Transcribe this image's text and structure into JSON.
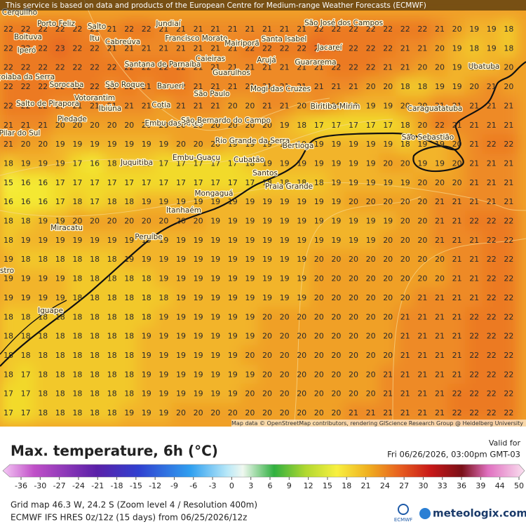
{
  "header": {
    "notice": "This service is based on data and products of the European Centre for Medium-range Weather Forecasts (ECMWF)"
  },
  "map": {
    "attribution": "Map data © OpenStreetMap contributors, rendering GIScience Research Group @ Heidelberg University",
    "cities": [
      "Cerquilho",
      "Porto Feliz",
      "Salto",
      "Jundiaí",
      "Boituva",
      "Itu",
      "Cabreúva",
      "Francisco Morato",
      "Mairiporã",
      "Santa Isabel",
      "São José dos Campos",
      "Jacareí",
      "Iperó",
      "Caieiras",
      "Santana de Parnaíba",
      "Arujá",
      "Guararema",
      "Guarulhos",
      "Araçoiaba da Serra",
      "Sorocaba",
      "São Roque",
      "Barueri",
      "São Paulo",
      "Mogi das Cruzes",
      "Ubatuba",
      "Salto de Pirapora",
      "Votorantim",
      "Ibiúna",
      "Cotia",
      "Embu das Artes",
      "São Bernardo do Campo",
      "Biritiba-Mirim",
      "Caraguatatuba",
      "Piedade",
      "Pilar do Sul",
      "Rio Grande da Serra",
      "Bertioga",
      "São Sebastião",
      "Embu-Guaçu",
      "Juquitiba",
      "Cubatão",
      "Santos",
      "Praia Grande",
      "Mongaguá",
      "Itanhaém",
      "Miracatu",
      "Peruíbe",
      "Iguape",
      "stro"
    ],
    "grid": [
      [
        22,
        22,
        22,
        22,
        22,
        21,
        21,
        22,
        22,
        21,
        21,
        21,
        21,
        21,
        21,
        21,
        21,
        21,
        22,
        22,
        22,
        22,
        22,
        22,
        22,
        21,
        20,
        19,
        19,
        18
      ],
      [
        22,
        22,
        22,
        23,
        22,
        22,
        21,
        21,
        21,
        21,
        21,
        21,
        21,
        21,
        22,
        22,
        22,
        22,
        23,
        22,
        22,
        22,
        22,
        21,
        21,
        20,
        19,
        18,
        19,
        18
      ],
      [
        22,
        22,
        22,
        22,
        22,
        22,
        22,
        22,
        22,
        22,
        22,
        21,
        21,
        21,
        21,
        21,
        21,
        21,
        21,
        22,
        22,
        22,
        21,
        21,
        20,
        20,
        19,
        19,
        19,
        20
      ],
      [
        22,
        22,
        22,
        22,
        22,
        22,
        21,
        22,
        21,
        22,
        22,
        21,
        21,
        21,
        21,
        21,
        21,
        21,
        21,
        21,
        21,
        20,
        20,
        18,
        18,
        19,
        19,
        20,
        21,
        20
      ],
      [
        22,
        22,
        22,
        21,
        21,
        21,
        21,
        21,
        21,
        20,
        21,
        21,
        21,
        20,
        20,
        21,
        21,
        20,
        21,
        20,
        19,
        19,
        19,
        20,
        20,
        21,
        21,
        21,
        21,
        21
      ],
      [
        21,
        21,
        21,
        20,
        20,
        20,
        20,
        20,
        20,
        20,
        20,
        20,
        20,
        20,
        20,
        20,
        19,
        18,
        17,
        17,
        17,
        17,
        17,
        18,
        20,
        22,
        21,
        21,
        21,
        21
      ],
      [
        21,
        20,
        20,
        19,
        19,
        19,
        19,
        19,
        19,
        19,
        20,
        20,
        20,
        19,
        19,
        19,
        19,
        19,
        19,
        19,
        19,
        19,
        19,
        18,
        19,
        19,
        20,
        21,
        22,
        22
      ],
      [
        18,
        19,
        19,
        19,
        17,
        16,
        18,
        18,
        18,
        17,
        17,
        17,
        17,
        17,
        18,
        19,
        19,
        19,
        19,
        19,
        19,
        19,
        20,
        20,
        19,
        19,
        20,
        21,
        21,
        21
      ],
      [
        15,
        16,
        16,
        17,
        17,
        17,
        17,
        17,
        17,
        17,
        17,
        17,
        17,
        17,
        17,
        18,
        18,
        18,
        18,
        19,
        19,
        19,
        19,
        19,
        20,
        20,
        20,
        21,
        21,
        21
      ],
      [
        16,
        16,
        16,
        17,
        18,
        17,
        18,
        18,
        19,
        19,
        19,
        19,
        19,
        19,
        19,
        19,
        19,
        19,
        19,
        19,
        20,
        20,
        20,
        20,
        20,
        21,
        21,
        21,
        21,
        21
      ],
      [
        18,
        18,
        19,
        19,
        20,
        20,
        20,
        20,
        20,
        20,
        20,
        20,
        19,
        19,
        19,
        19,
        19,
        19,
        19,
        19,
        19,
        19,
        19,
        20,
        20,
        21,
        21,
        22,
        22,
        22
      ],
      [
        18,
        19,
        19,
        19,
        19,
        19,
        19,
        19,
        19,
        19,
        19,
        19,
        19,
        19,
        19,
        19,
        19,
        19,
        19,
        19,
        19,
        19,
        20,
        20,
        20,
        21,
        21,
        21,
        22,
        22
      ],
      [
        19,
        18,
        18,
        18,
        18,
        18,
        18,
        19,
        19,
        19,
        19,
        19,
        19,
        19,
        19,
        19,
        19,
        19,
        20,
        20,
        20,
        20,
        20,
        20,
        20,
        20,
        21,
        21,
        22,
        22
      ],
      [
        19,
        19,
        19,
        19,
        18,
        18,
        18,
        18,
        18,
        19,
        19,
        19,
        19,
        19,
        19,
        19,
        19,
        19,
        20,
        20,
        20,
        20,
        20,
        20,
        20,
        20,
        21,
        21,
        22,
        22
      ],
      [
        19,
        19,
        19,
        19,
        18,
        18,
        18,
        18,
        18,
        18,
        19,
        19,
        19,
        19,
        19,
        19,
        19,
        19,
        20,
        20,
        20,
        20,
        20,
        20,
        21,
        21,
        21,
        21,
        22,
        22
      ],
      [
        18,
        18,
        18,
        18,
        18,
        18,
        18,
        18,
        18,
        19,
        19,
        19,
        19,
        19,
        19,
        20,
        20,
        20,
        20,
        20,
        20,
        20,
        20,
        21,
        21,
        21,
        21,
        22,
        22,
        22
      ],
      [
        18,
        18,
        18,
        18,
        18,
        18,
        18,
        18,
        19,
        19,
        19,
        19,
        19,
        19,
        19,
        20,
        20,
        20,
        20,
        20,
        20,
        20,
        20,
        21,
        21,
        21,
        21,
        22,
        22,
        22
      ],
      [
        18,
        18,
        18,
        18,
        18,
        18,
        18,
        18,
        19,
        19,
        19,
        19,
        19,
        19,
        20,
        20,
        20,
        20,
        20,
        20,
        20,
        20,
        20,
        21,
        21,
        21,
        21,
        22,
        22,
        22
      ],
      [
        18,
        17,
        18,
        18,
        18,
        18,
        18,
        18,
        19,
        19,
        19,
        19,
        19,
        19,
        19,
        20,
        20,
        20,
        20,
        20,
        20,
        20,
        21,
        21,
        21,
        21,
        21,
        22,
        22,
        22
      ],
      [
        17,
        17,
        18,
        18,
        18,
        18,
        18,
        18,
        19,
        19,
        19,
        19,
        19,
        19,
        20,
        20,
        20,
        20,
        20,
        20,
        20,
        20,
        21,
        21,
        21,
        21,
        22,
        22,
        22,
        22
      ],
      [
        17,
        17,
        18,
        18,
        18,
        18,
        18,
        19,
        19,
        19,
        20,
        20,
        20,
        20,
        20,
        20,
        20,
        20,
        20,
        20,
        21,
        21,
        21,
        21,
        21,
        21,
        22,
        22,
        22,
        22
      ]
    ]
  },
  "legend": {
    "title": "Max. temperature, 6h (°C)",
    "valid_label": "Valid for",
    "valid_time": "Fri 06/26/2026, 03:00pm GMT-03",
    "colorbar_ticks": [
      -36,
      -30,
      -27,
      -24,
      -21,
      -18,
      -15,
      -12,
      -9,
      -6,
      -3,
      0,
      3,
      6,
      9,
      12,
      15,
      18,
      21,
      24,
      27,
      30,
      33,
      36,
      39,
      44,
      50
    ]
  },
  "footer": {
    "grid_info": "Grid map 46.3 W, 24.2 S (Zoom level 4 / Resolution 400m)",
    "model_info": "ECMWF IFS HRES 0z/12z (15 days) from 06/25/2026/12z",
    "logo_ecmwf": "ECMWF",
    "logo_site": "meteologix.com"
  }
}
